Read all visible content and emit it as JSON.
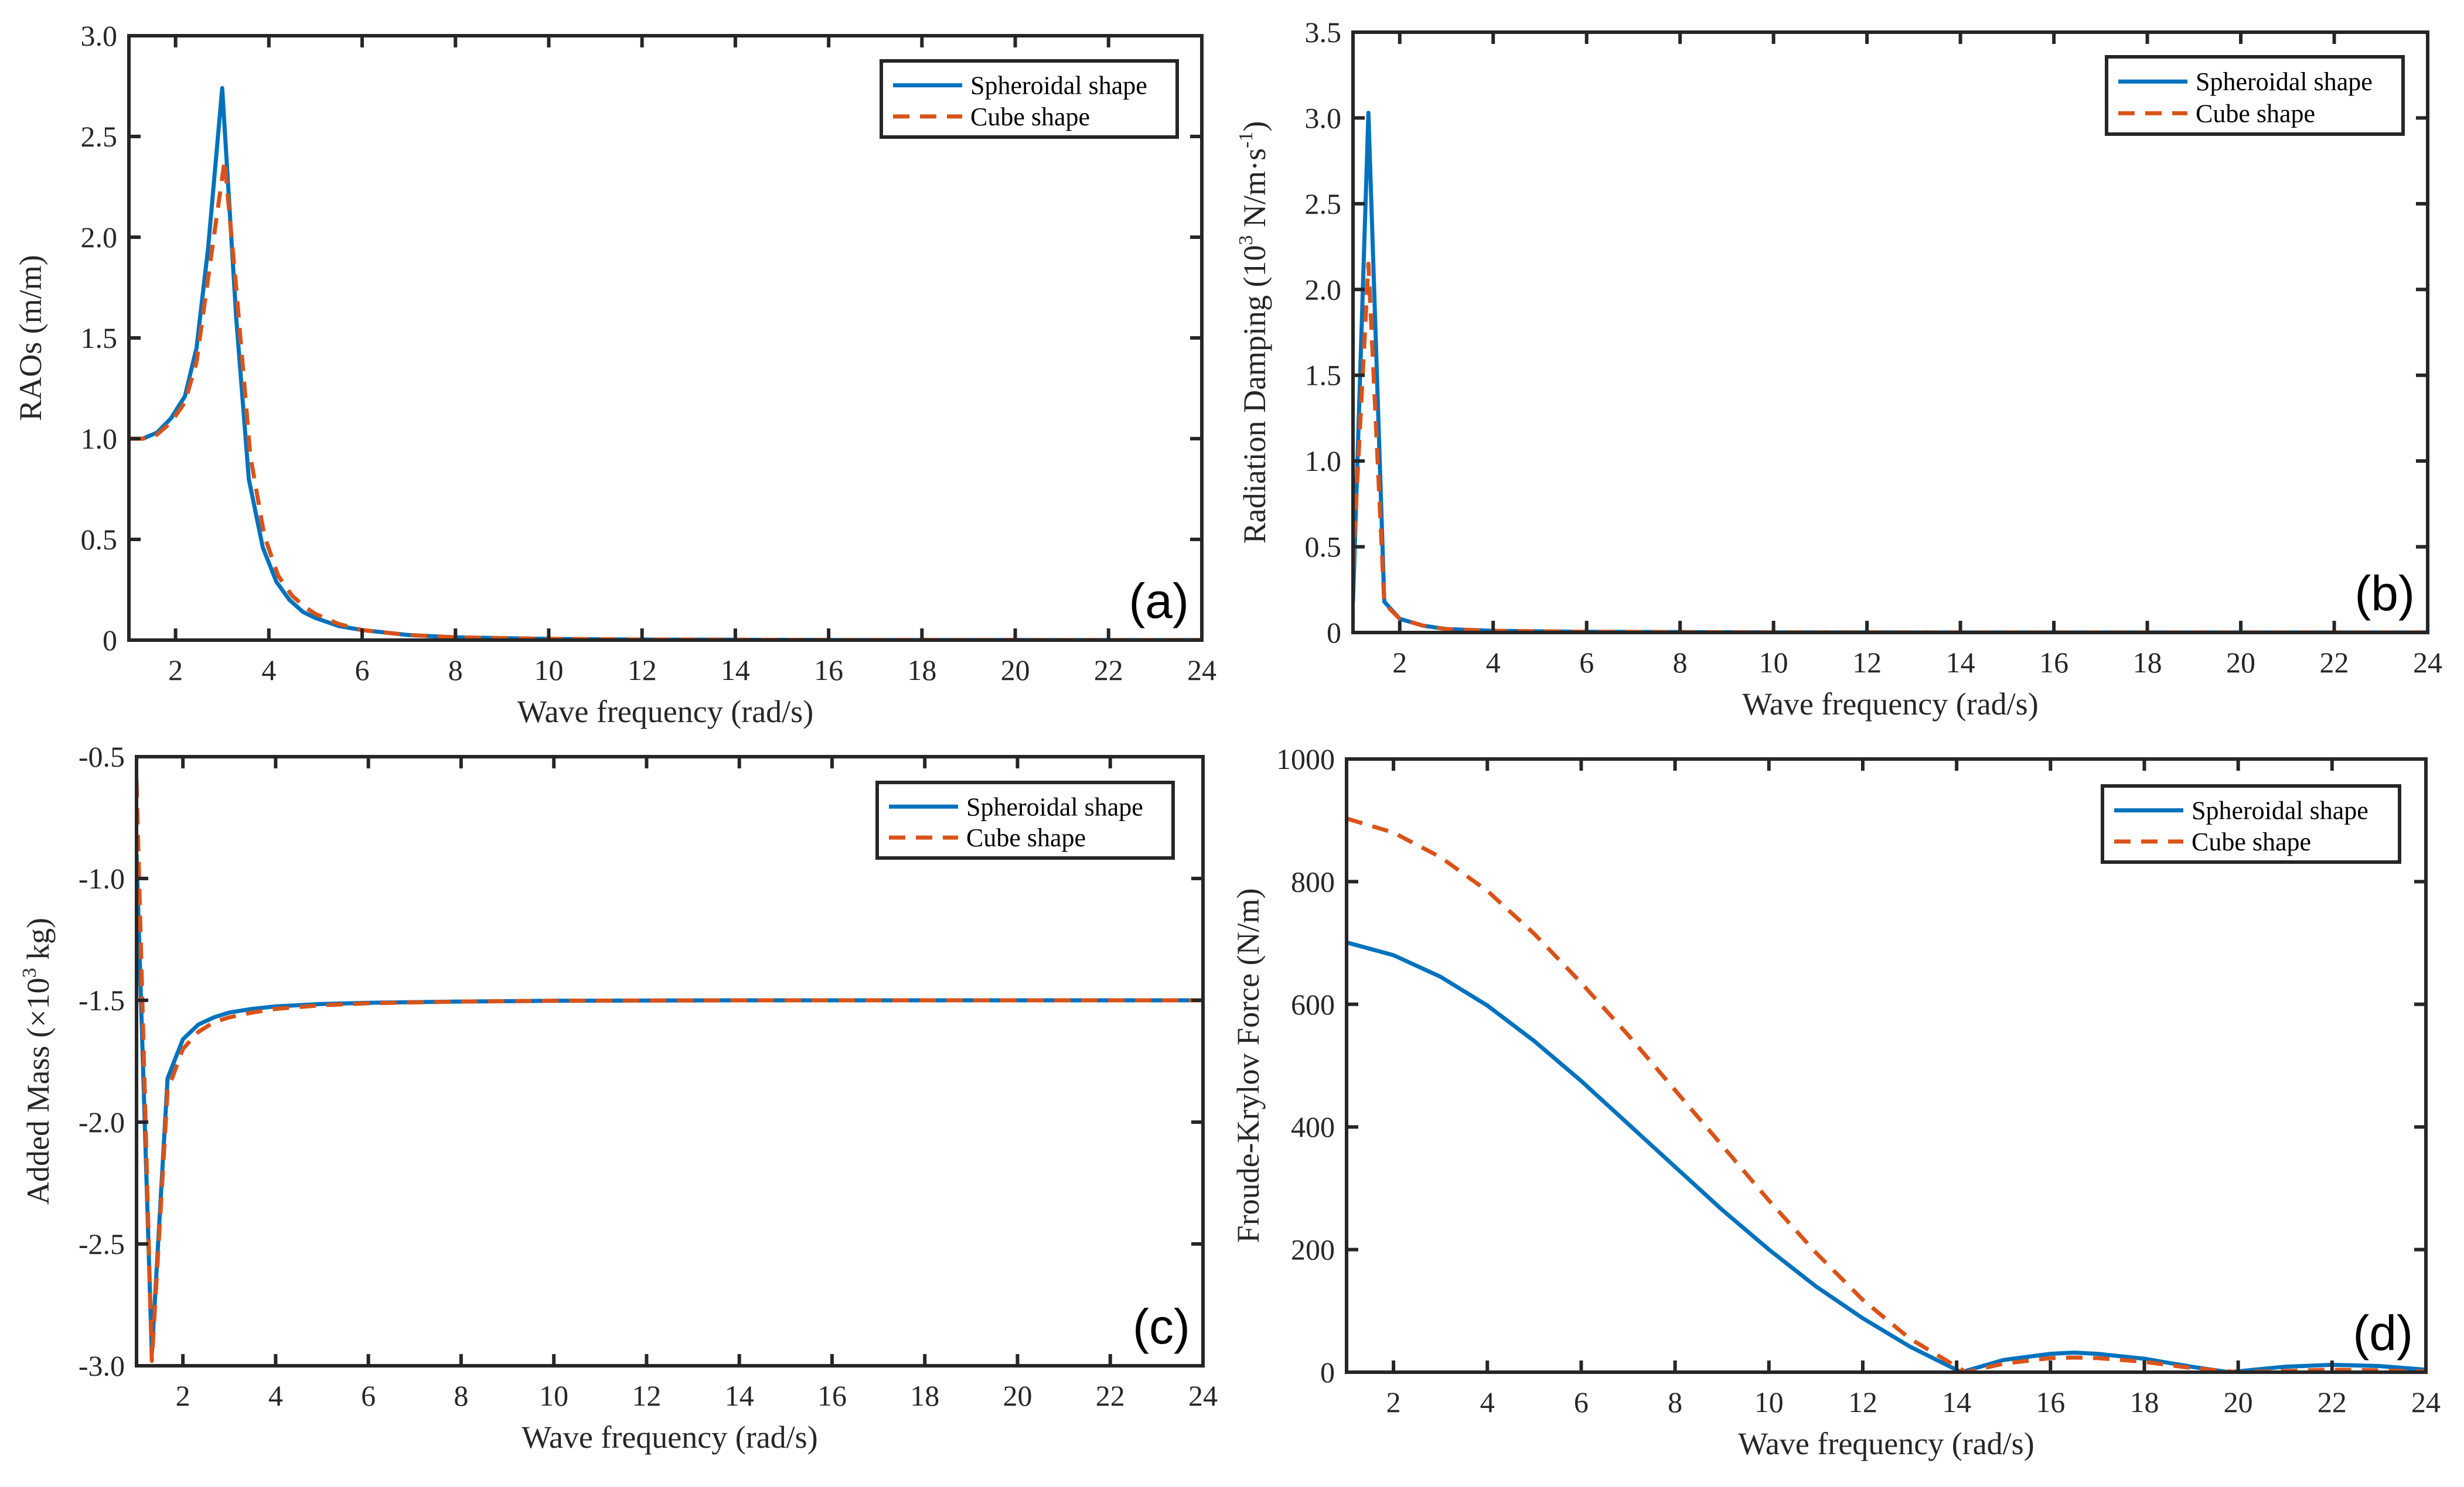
{
  "colors": {
    "spheroidal": "#0072BD",
    "cube": "#D95319",
    "axis": "#262626"
  },
  "legend": [
    "Spheroidal shape",
    "Cube shape"
  ],
  "chart_data": [
    {
      "id": "a",
      "type": "line",
      "panel_label": "(a)",
      "xlabel": "Wave frequency (rad/s)",
      "ylabel": {
        "main": "RAOs (m/m)",
        "sup": "",
        "tail": ""
      },
      "xlim": [
        1,
        24
      ],
      "ylim": [
        0,
        3.0
      ],
      "xticks": [
        2,
        4,
        6,
        8,
        10,
        12,
        14,
        16,
        18,
        20,
        22,
        24
      ],
      "yticks": [
        0,
        0.5,
        1.0,
        1.5,
        2.0,
        2.5,
        3.0
      ],
      "ytick_labels": [
        "0",
        "0.5",
        "1.0",
        "1.5",
        "2.0",
        "2.5",
        "3.0"
      ],
      "legend_position": "top-right",
      "series": [
        {
          "name": "Spheroidal shape",
          "style": "solid",
          "x": [
            1.0,
            1.3,
            1.6,
            1.9,
            2.2,
            2.45,
            2.7,
            3.0,
            3.3,
            3.57,
            3.87,
            4.16,
            4.44,
            4.73,
            5.0,
            5.5,
            6.0,
            7.0,
            8.0,
            10.0,
            12.0,
            16.0,
            20.0,
            24.0
          ],
          "y": [
            1.0,
            1.0,
            1.03,
            1.1,
            1.21,
            1.45,
            1.95,
            2.74,
            1.6,
            0.8,
            0.46,
            0.29,
            0.2,
            0.14,
            0.11,
            0.07,
            0.05,
            0.025,
            0.014,
            0.006,
            0.003,
            0.001,
            0.0005,
            0.0003
          ]
        },
        {
          "name": "Cube shape",
          "style": "dashed",
          "x": [
            1.0,
            1.3,
            1.6,
            1.9,
            2.2,
            2.45,
            2.7,
            3.05,
            3.3,
            3.6,
            3.9,
            4.2,
            4.5,
            4.8,
            5.0,
            5.5,
            6.0,
            7.0,
            8.0,
            10.0,
            12.0,
            16.0,
            20.0,
            24.0
          ],
          "y": [
            1.0,
            1.0,
            1.02,
            1.08,
            1.18,
            1.38,
            1.8,
            2.38,
            1.75,
            0.92,
            0.52,
            0.32,
            0.22,
            0.16,
            0.13,
            0.08,
            0.05,
            0.025,
            0.014,
            0.006,
            0.003,
            0.001,
            0.0005,
            0.0003
          ]
        }
      ]
    },
    {
      "id": "b",
      "type": "line",
      "panel_label": "(b)",
      "xlabel": "Wave frequency (rad/s)",
      "ylabel": {
        "main": "Radiation Damping (10",
        "sup": "3",
        "tail": " N/m·s",
        "sup2": "-1",
        "end": ")"
      },
      "xlim": [
        1,
        24
      ],
      "ylim": [
        0,
        3.5
      ],
      "xticks": [
        2,
        4,
        6,
        8,
        10,
        12,
        14,
        16,
        18,
        20,
        22,
        24
      ],
      "yticks": [
        0,
        0.5,
        1.0,
        1.5,
        2.0,
        2.5,
        3.0,
        3.5
      ],
      "ytick_labels": [
        "0",
        "0.5",
        "1.0",
        "1.5",
        "2.0",
        "2.5",
        "3.0",
        "3.5"
      ],
      "legend_position": "top-right",
      "series": [
        {
          "name": "Spheroidal shape",
          "style": "solid",
          "x": [
            1.0,
            1.33,
            1.67,
            2.0,
            2.5,
            3.0,
            4.0,
            6.0,
            10.0,
            16.0,
            24.0
          ],
          "y": [
            0.18,
            3.03,
            0.18,
            0.08,
            0.04,
            0.02,
            0.01,
            0.004,
            0.001,
            0.0005,
            0.0002
          ]
        },
        {
          "name": "Cube shape",
          "style": "dashed",
          "x": [
            1.0,
            1.33,
            1.67,
            2.0,
            2.5,
            3.0,
            4.0,
            6.0,
            10.0,
            16.0,
            24.0
          ],
          "y": [
            0.4,
            2.15,
            0.17,
            0.08,
            0.04,
            0.02,
            0.01,
            0.004,
            0.001,
            0.0005,
            0.0002
          ]
        }
      ]
    },
    {
      "id": "c",
      "type": "line",
      "panel_label": "(c)",
      "xlabel": "Wave frequency (rad/s)",
      "ylabel": {
        "main": "Added Mass (×10",
        "sup": "3",
        "tail": " kg)"
      },
      "xlim": [
        1,
        24
      ],
      "ylim": [
        -3.0,
        -0.5
      ],
      "xticks": [
        2,
        4,
        6,
        8,
        10,
        12,
        14,
        16,
        18,
        20,
        22,
        24
      ],
      "yticks": [
        -3.0,
        -2.5,
        -2.0,
        -1.5,
        -1.0,
        -0.5
      ],
      "ytick_labels": [
        "-3.0",
        "-2.5",
        "-2.0",
        "-1.5",
        "-1.0",
        "-0.5"
      ],
      "legend_position": "top-right",
      "series": [
        {
          "name": "Spheroidal shape",
          "style": "solid",
          "x": [
            1.0,
            1.33,
            1.67,
            2.0,
            2.33,
            2.67,
            3.0,
            3.5,
            4.0,
            5.0,
            6.0,
            8.0,
            10.0,
            14.0,
            18.0,
            24.0
          ],
          "y": [
            -0.9,
            -2.95,
            -1.82,
            -1.66,
            -1.6,
            -1.57,
            -1.55,
            -1.535,
            -1.525,
            -1.515,
            -1.51,
            -1.505,
            -1.502,
            -1.5,
            -1.5,
            -1.5
          ]
        },
        {
          "name": "Cube shape",
          "style": "dashed",
          "x": [
            1.0,
            1.33,
            1.67,
            2.0,
            2.33,
            2.67,
            3.0,
            3.5,
            4.0,
            5.0,
            6.0,
            8.0,
            10.0,
            14.0,
            18.0,
            24.0
          ],
          "y": [
            -0.6,
            -2.98,
            -1.87,
            -1.7,
            -1.63,
            -1.59,
            -1.57,
            -1.55,
            -1.535,
            -1.52,
            -1.512,
            -1.505,
            -1.502,
            -1.5,
            -1.5,
            -1.5
          ]
        }
      ]
    },
    {
      "id": "d",
      "type": "line",
      "panel_label": "(d)",
      "xlabel": "Wave frequency (rad/s)",
      "ylabel": {
        "main": "Froude-Krylov Force (N/m)",
        "sup": "",
        "tail": ""
      },
      "xlim": [
        1,
        24
      ],
      "ylim": [
        0,
        1000
      ],
      "xticks": [
        2,
        4,
        6,
        8,
        10,
        12,
        14,
        16,
        18,
        20,
        22,
        24
      ],
      "yticks": [
        0,
        200,
        400,
        600,
        800,
        1000
      ],
      "ytick_labels": [
        "0",
        "200",
        "400",
        "600",
        "800",
        "1000"
      ],
      "legend_position": "top-right",
      "series": [
        {
          "name": "Spheroidal shape",
          "style": "solid",
          "x": [
            1,
            2,
            3,
            4,
            5,
            6,
            7,
            8,
            9,
            10,
            11,
            12,
            13,
            14.1,
            15,
            16,
            16.5,
            17,
            18,
            19,
            19.8,
            21,
            22,
            23,
            24
          ],
          "y": [
            701,
            680,
            645,
            598,
            540,
            475,
            405,
            335,
            265,
            200,
            140,
            88,
            42,
            0,
            20,
            30,
            32,
            30,
            22,
            9,
            0,
            9,
            12,
            10,
            4
          ]
        },
        {
          "name": "Cube shape",
          "style": "dashed",
          "x": [
            1,
            2,
            3,
            4,
            5,
            6,
            7,
            8,
            9,
            10,
            11,
            12,
            13,
            14.2,
            15,
            16,
            16.5,
            17,
            18,
            19,
            20,
            21,
            22,
            23,
            24
          ],
          "y": [
            903,
            880,
            840,
            785,
            715,
            635,
            550,
            460,
            370,
            280,
            195,
            118,
            55,
            0,
            14,
            23,
            24,
            23,
            17,
            7,
            0,
            2,
            4,
            3,
            1
          ]
        }
      ]
    }
  ]
}
